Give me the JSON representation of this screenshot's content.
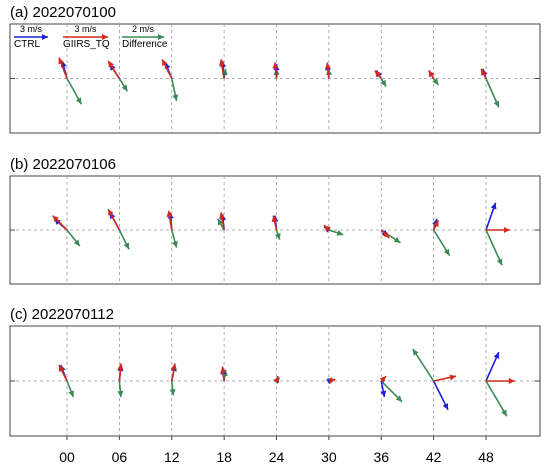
{
  "chart_data": {
    "type": "vector",
    "x_ticks": [
      "00",
      "06",
      "12",
      "18",
      "24",
      "30",
      "36",
      "42",
      "48"
    ],
    "legend": [
      {
        "name": "CTRL",
        "scale_label": "3 m/s",
        "color": "#1f1fd6"
      },
      {
        "name": "GIIRS_TQ",
        "scale_label": "3 m/s",
        "color": "#d42a1a"
      },
      {
        "name": "Difference",
        "scale_label": "2 m/s",
        "color": "#3a8a55"
      }
    ],
    "grid": true,
    "panels": [
      {
        "title": "(a) 2022070100",
        "series": [
          {
            "name": "CTRL",
            "vectors": [
              [
                -0.3,
                1.1
              ],
              [
                -0.6,
                0.9
              ],
              [
                -0.4,
                1.0
              ],
              [
                -0.1,
                1.1
              ],
              [
                0.0,
                0.9
              ],
              [
                -0.1,
                0.9
              ],
              [
                -0.3,
                0.5
              ],
              [
                -0.3,
                0.5
              ],
              [
                -0.2,
                0.6
              ]
            ]
          },
          {
            "name": "GIIRS_TQ",
            "vectors": [
              [
                -0.5,
                1.3
              ],
              [
                -0.7,
                1.1
              ],
              [
                -0.6,
                1.2
              ],
              [
                -0.2,
                1.2
              ],
              [
                -0.1,
                1.0
              ],
              [
                -0.1,
                1.0
              ],
              [
                -0.4,
                0.5
              ],
              [
                -0.3,
                0.5
              ],
              [
                -0.3,
                0.6
              ]
            ]
          },
          {
            "name": "Difference",
            "vectors": [
              [
                0.9,
                -1.6
              ],
              [
                0.5,
                -0.8
              ],
              [
                0.3,
                -1.4
              ],
              [
                0.1,
                0.6
              ],
              [
                0.0,
                0.6
              ],
              [
                0.0,
                0.6
              ],
              [
                0.3,
                -0.5
              ],
              [
                0.3,
                -0.4
              ],
              [
                0.8,
                -1.8
              ]
            ]
          }
        ]
      },
      {
        "title": "(b) 2022070106",
        "series": [
          {
            "name": "CTRL",
            "vectors": [
              [
                -0.8,
                0.7
              ],
              [
                -0.6,
                1.1
              ],
              [
                -0.1,
                1.1
              ],
              [
                -0.1,
                1.0
              ],
              [
                -0.1,
                0.9
              ],
              [
                -0.3,
                0.2
              ],
              [
                0.4,
                -0.4
              ],
              [
                0.2,
                0.7
              ],
              [
                0.6,
                1.7
              ]
            ]
          },
          {
            "name": "GIIRS_TQ",
            "vectors": [
              [
                -0.9,
                0.9
              ],
              [
                -0.7,
                1.3
              ],
              [
                -0.2,
                1.2
              ],
              [
                -0.2,
                1.1
              ],
              [
                -0.2,
                0.9
              ],
              [
                -0.3,
                0.3
              ],
              [
                0.5,
                -0.5
              ],
              [
                0.3,
                0.6
              ],
              [
                1.5,
                0.0
              ]
            ]
          },
          {
            "name": "Difference",
            "vectors": [
              [
                0.8,
                -1.0
              ],
              [
                0.6,
                -1.2
              ],
              [
                0.3,
                -1.1
              ],
              [
                -0.4,
                0.7
              ],
              [
                0.2,
                -0.6
              ],
              [
                0.9,
                -0.3
              ],
              [
                1.2,
                -0.8
              ],
              [
                1.0,
                -1.6
              ],
              [
                1.0,
                -2.2
              ]
            ]
          }
        ]
      },
      {
        "title": "(c) 2022070112",
        "series": [
          {
            "name": "CTRL",
            "vectors": [
              [
                -0.4,
                1.0
              ],
              [
                0.1,
                1.0
              ],
              [
                0.2,
                1.0
              ],
              [
                -0.1,
                0.8
              ],
              [
                0.1,
                0.3
              ],
              [
                0.3,
                0.1
              ],
              [
                0.2,
                -1.0
              ],
              [
                0.9,
                -1.8
              ],
              [
                0.8,
                1.8
              ]
            ]
          },
          {
            "name": "GIIRS_TQ",
            "vectors": [
              [
                -0.5,
                1.0
              ],
              [
                0.1,
                1.1
              ],
              [
                0.2,
                1.1
              ],
              [
                -0.1,
                0.9
              ],
              [
                0.1,
                0.3
              ],
              [
                0.4,
                0.1
              ],
              [
                0.3,
                0.3
              ],
              [
                1.4,
                0.3
              ],
              [
                1.8,
                0.0
              ]
            ]
          },
          {
            "name": "Difference",
            "vectors": [
              [
                0.4,
                -1.0
              ],
              [
                0.1,
                -1.0
              ],
              [
                0.1,
                -0.9
              ],
              [
                0.1,
                0.7
              ],
              [
                0.2,
                0.2
              ],
              [
                0.2,
                0.2
              ],
              [
                1.3,
                -1.3
              ],
              [
                -1.3,
                2.0
              ],
              [
                1.3,
                -2.2
              ]
            ]
          }
        ]
      }
    ]
  }
}
